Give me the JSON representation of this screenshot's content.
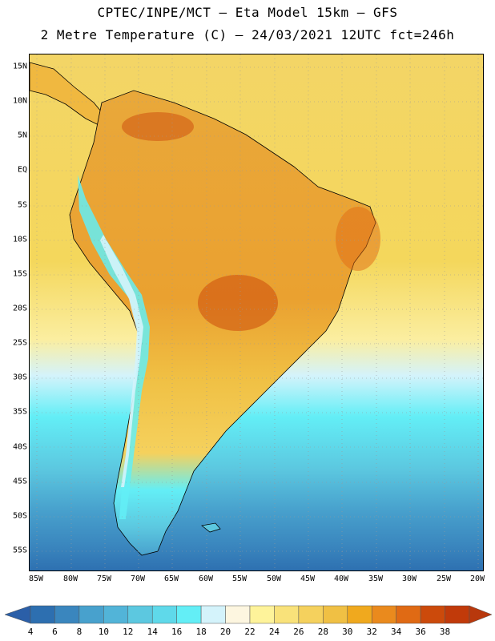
{
  "header": {
    "line1": "CPTEC/INPE/MCT –  Eta Model 15km – GFS",
    "line2": "2 Metre Temperature (C) – 24/03/2021 12UTC fct=246h"
  },
  "axes": {
    "lat_labels": [
      "15N",
      "10N",
      "5N",
      "EQ",
      "5S",
      "10S",
      "15S",
      "20S",
      "25S",
      "30S",
      "35S",
      "40S",
      "45S",
      "50S",
      "55S"
    ],
    "lon_labels": [
      "85W",
      "80W",
      "75W",
      "70W",
      "65W",
      "60W",
      "55W",
      "50W",
      "45W",
      "40W",
      "35W",
      "30W",
      "25W",
      "20W"
    ]
  },
  "colorbar": {
    "labels": [
      "4",
      "6",
      "8",
      "10",
      "12",
      "14",
      "16",
      "18",
      "20",
      "22",
      "24",
      "26",
      "28",
      "30",
      "32",
      "34",
      "36",
      "38"
    ],
    "colors": [
      "#2d6fb0",
      "#3a86be",
      "#48a1cd",
      "#52b4d8",
      "#5cc8e0",
      "#5fd9ea",
      "#63eef6",
      "#d4f3fb",
      "#fdf6e0",
      "#fef39a",
      "#f9e27a",
      "#f5d15d",
      "#f0c044",
      "#f0a91e",
      "#ea8a1d",
      "#e06a14",
      "#cc4a0b",
      "#c13a0a"
    ],
    "low_color": "#2b5fa8",
    "high_color": "#b8380c"
  },
  "map": {
    "ocean_color": "#f2d060",
    "land_color": "#e8a030",
    "cold_ocean": "#3aa0d0"
  }
}
